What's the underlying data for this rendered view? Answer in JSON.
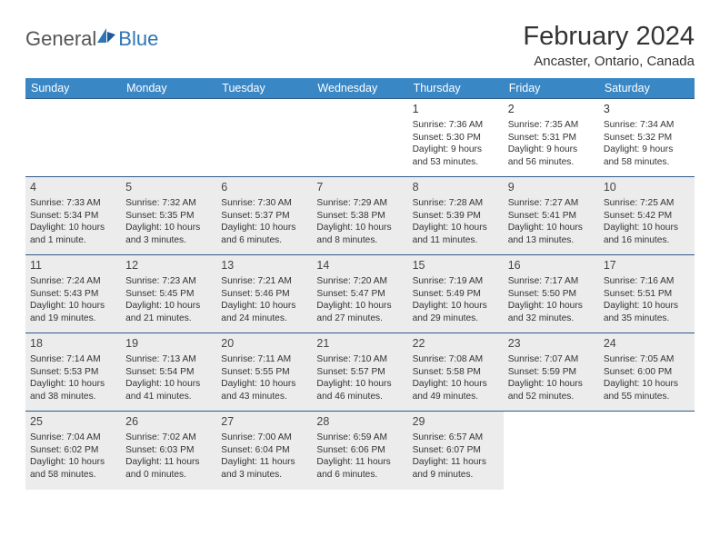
{
  "logo": {
    "general": "General",
    "blue": "Blue"
  },
  "title": "February 2024",
  "location": "Ancaster, Ontario, Canada",
  "header_color": "#3a87c6",
  "border_color": "#2e5a8a",
  "shade_color": "#ececec",
  "days_of_week": [
    "Sunday",
    "Monday",
    "Tuesday",
    "Wednesday",
    "Thursday",
    "Friday",
    "Saturday"
  ],
  "weeks": [
    [
      null,
      null,
      null,
      null,
      {
        "n": "1",
        "sr": "Sunrise: 7:36 AM",
        "ss": "Sunset: 5:30 PM",
        "dl1": "Daylight: 9 hours",
        "dl2": "and 53 minutes."
      },
      {
        "n": "2",
        "sr": "Sunrise: 7:35 AM",
        "ss": "Sunset: 5:31 PM",
        "dl1": "Daylight: 9 hours",
        "dl2": "and 56 minutes."
      },
      {
        "n": "3",
        "sr": "Sunrise: 7:34 AM",
        "ss": "Sunset: 5:32 PM",
        "dl1": "Daylight: 9 hours",
        "dl2": "and 58 minutes."
      }
    ],
    [
      {
        "n": "4",
        "sr": "Sunrise: 7:33 AM",
        "ss": "Sunset: 5:34 PM",
        "dl1": "Daylight: 10 hours",
        "dl2": "and 1 minute."
      },
      {
        "n": "5",
        "sr": "Sunrise: 7:32 AM",
        "ss": "Sunset: 5:35 PM",
        "dl1": "Daylight: 10 hours",
        "dl2": "and 3 minutes."
      },
      {
        "n": "6",
        "sr": "Sunrise: 7:30 AM",
        "ss": "Sunset: 5:37 PM",
        "dl1": "Daylight: 10 hours",
        "dl2": "and 6 minutes."
      },
      {
        "n": "7",
        "sr": "Sunrise: 7:29 AM",
        "ss": "Sunset: 5:38 PM",
        "dl1": "Daylight: 10 hours",
        "dl2": "and 8 minutes."
      },
      {
        "n": "8",
        "sr": "Sunrise: 7:28 AM",
        "ss": "Sunset: 5:39 PM",
        "dl1": "Daylight: 10 hours",
        "dl2": "and 11 minutes."
      },
      {
        "n": "9",
        "sr": "Sunrise: 7:27 AM",
        "ss": "Sunset: 5:41 PM",
        "dl1": "Daylight: 10 hours",
        "dl2": "and 13 minutes."
      },
      {
        "n": "10",
        "sr": "Sunrise: 7:25 AM",
        "ss": "Sunset: 5:42 PM",
        "dl1": "Daylight: 10 hours",
        "dl2": "and 16 minutes."
      }
    ],
    [
      {
        "n": "11",
        "sr": "Sunrise: 7:24 AM",
        "ss": "Sunset: 5:43 PM",
        "dl1": "Daylight: 10 hours",
        "dl2": "and 19 minutes."
      },
      {
        "n": "12",
        "sr": "Sunrise: 7:23 AM",
        "ss": "Sunset: 5:45 PM",
        "dl1": "Daylight: 10 hours",
        "dl2": "and 21 minutes."
      },
      {
        "n": "13",
        "sr": "Sunrise: 7:21 AM",
        "ss": "Sunset: 5:46 PM",
        "dl1": "Daylight: 10 hours",
        "dl2": "and 24 minutes."
      },
      {
        "n": "14",
        "sr": "Sunrise: 7:20 AM",
        "ss": "Sunset: 5:47 PM",
        "dl1": "Daylight: 10 hours",
        "dl2": "and 27 minutes."
      },
      {
        "n": "15",
        "sr": "Sunrise: 7:19 AM",
        "ss": "Sunset: 5:49 PM",
        "dl1": "Daylight: 10 hours",
        "dl2": "and 29 minutes."
      },
      {
        "n": "16",
        "sr": "Sunrise: 7:17 AM",
        "ss": "Sunset: 5:50 PM",
        "dl1": "Daylight: 10 hours",
        "dl2": "and 32 minutes."
      },
      {
        "n": "17",
        "sr": "Sunrise: 7:16 AM",
        "ss": "Sunset: 5:51 PM",
        "dl1": "Daylight: 10 hours",
        "dl2": "and 35 minutes."
      }
    ],
    [
      {
        "n": "18",
        "sr": "Sunrise: 7:14 AM",
        "ss": "Sunset: 5:53 PM",
        "dl1": "Daylight: 10 hours",
        "dl2": "and 38 minutes."
      },
      {
        "n": "19",
        "sr": "Sunrise: 7:13 AM",
        "ss": "Sunset: 5:54 PM",
        "dl1": "Daylight: 10 hours",
        "dl2": "and 41 minutes."
      },
      {
        "n": "20",
        "sr": "Sunrise: 7:11 AM",
        "ss": "Sunset: 5:55 PM",
        "dl1": "Daylight: 10 hours",
        "dl2": "and 43 minutes."
      },
      {
        "n": "21",
        "sr": "Sunrise: 7:10 AM",
        "ss": "Sunset: 5:57 PM",
        "dl1": "Daylight: 10 hours",
        "dl2": "and 46 minutes."
      },
      {
        "n": "22",
        "sr": "Sunrise: 7:08 AM",
        "ss": "Sunset: 5:58 PM",
        "dl1": "Daylight: 10 hours",
        "dl2": "and 49 minutes."
      },
      {
        "n": "23",
        "sr": "Sunrise: 7:07 AM",
        "ss": "Sunset: 5:59 PM",
        "dl1": "Daylight: 10 hours",
        "dl2": "and 52 minutes."
      },
      {
        "n": "24",
        "sr": "Sunrise: 7:05 AM",
        "ss": "Sunset: 6:00 PM",
        "dl1": "Daylight: 10 hours",
        "dl2": "and 55 minutes."
      }
    ],
    [
      {
        "n": "25",
        "sr": "Sunrise: 7:04 AM",
        "ss": "Sunset: 6:02 PM",
        "dl1": "Daylight: 10 hours",
        "dl2": "and 58 minutes."
      },
      {
        "n": "26",
        "sr": "Sunrise: 7:02 AM",
        "ss": "Sunset: 6:03 PM",
        "dl1": "Daylight: 11 hours",
        "dl2": "and 0 minutes."
      },
      {
        "n": "27",
        "sr": "Sunrise: 7:00 AM",
        "ss": "Sunset: 6:04 PM",
        "dl1": "Daylight: 11 hours",
        "dl2": "and 3 minutes."
      },
      {
        "n": "28",
        "sr": "Sunrise: 6:59 AM",
        "ss": "Sunset: 6:06 PM",
        "dl1": "Daylight: 11 hours",
        "dl2": "and 6 minutes."
      },
      {
        "n": "29",
        "sr": "Sunrise: 6:57 AM",
        "ss": "Sunset: 6:07 PM",
        "dl1": "Daylight: 11 hours",
        "dl2": "and 9 minutes."
      },
      null,
      null
    ]
  ]
}
